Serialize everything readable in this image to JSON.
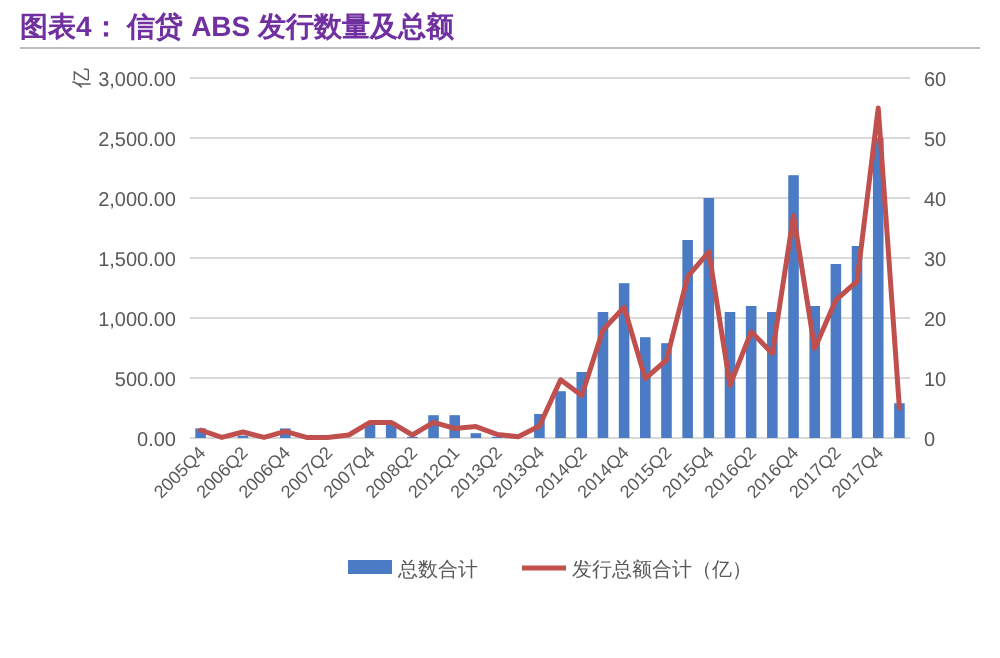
{
  "chart_data": {
    "type": "bar",
    "title": "图表4：  信贷 ABS 发行数量及总额",
    "ylabel": "亿",
    "categories": [
      "2005Q4",
      null,
      "2006Q2",
      null,
      "2006Q4",
      null,
      "2007Q2",
      null,
      "2007Q4",
      null,
      "2008Q2",
      null,
      "2012Q1",
      null,
      "2013Q2",
      null,
      "2013Q4",
      null,
      "2014Q2",
      null,
      "2014Q4",
      null,
      "2015Q2",
      null,
      "2015Q4",
      null,
      "2016Q2",
      null,
      "2016Q4",
      null,
      "2017Q2",
      null,
      "2017Q4",
      null
    ],
    "series": [
      {
        "name": "总数合计",
        "color": "#4a7bc4",
        "values": [
          80,
          0,
          20,
          0,
          80,
          0,
          0,
          0,
          130,
          130,
          10,
          190,
          190,
          40,
          10,
          0,
          200,
          390,
          550,
          1050,
          1290,
          840,
          790,
          1650,
          2000,
          1050,
          1100,
          1050,
          2190,
          1100,
          1450,
          1600,
          2500,
          290
        ]
      },
      {
        "name": "发行总额合计（亿）",
        "type": "line",
        "axis": "y2",
        "color": "#c0504d",
        "values": [
          1.3,
          0.1,
          1,
          0.1,
          1.1,
          0.1,
          0.1,
          0.5,
          2.6,
          2.6,
          0.5,
          2.6,
          1.6,
          1.9,
          0.6,
          0.2,
          2,
          9.7,
          7.1,
          18,
          21.8,
          9.9,
          13,
          26.9,
          31,
          8.8,
          17.7,
          14.1,
          37.1,
          14.9,
          23,
          26.1,
          55,
          5
        ]
      }
    ],
    "ylim": [
      0,
      3000
    ],
    "yticks": [
      {
        "value": 0,
        "label": "0.00"
      },
      {
        "value": 500,
        "label": "500.00"
      },
      {
        "value": 1000,
        "label": "1,000.00"
      },
      {
        "value": 1500,
        "label": "1,500.00"
      },
      {
        "value": 2000,
        "label": "2,000.00"
      },
      {
        "value": 2500,
        "label": "2,500.00"
      },
      {
        "value": 3000,
        "label": "3,000.00"
      }
    ],
    "y2lim": [
      0,
      60
    ],
    "y2ticks": [
      0,
      10,
      20,
      30,
      40,
      50,
      60
    ],
    "grid": "y",
    "legend": "bottom",
    "line_style": "solid",
    "marker": "none"
  }
}
